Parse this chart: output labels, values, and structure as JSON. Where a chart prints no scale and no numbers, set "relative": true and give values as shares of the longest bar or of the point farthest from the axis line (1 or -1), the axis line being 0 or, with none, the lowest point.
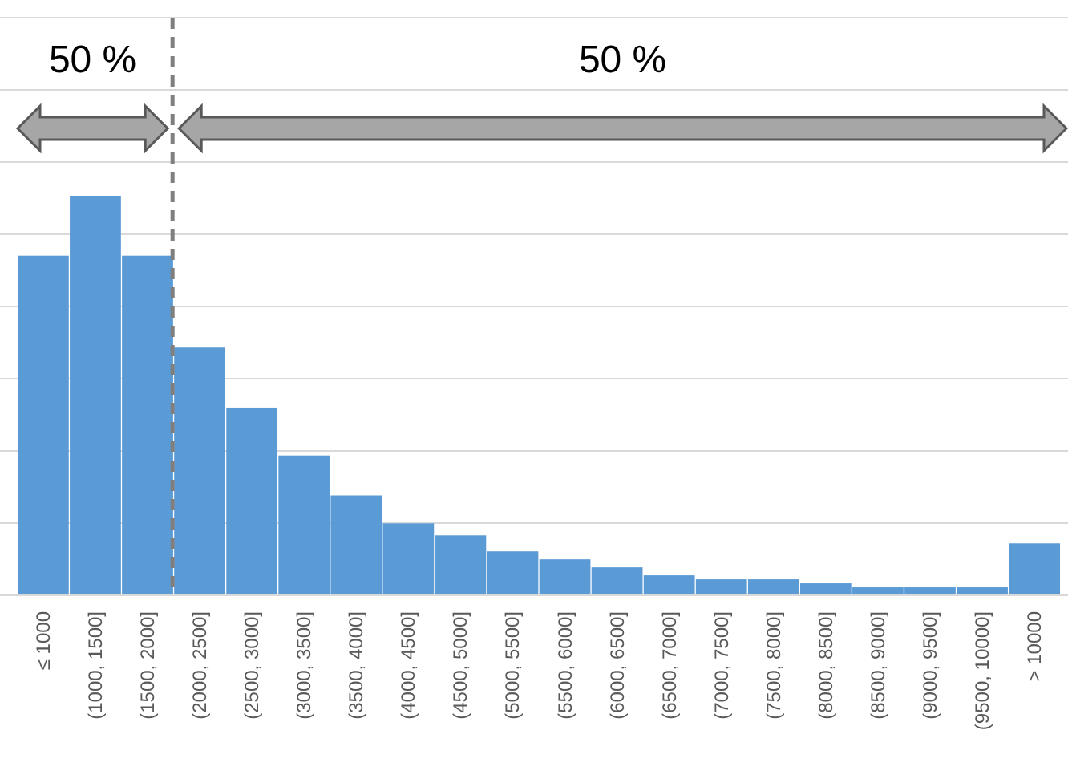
{
  "chart_data": {
    "type": "bar",
    "relative": true,
    "grid": "y",
    "color": "#5b9bd5",
    "categories": [
      "≤ 1000",
      "(1000, 1500]",
      "(1500, 2000]",
      "(2000, 2500]",
      "(2500, 3000]",
      "(3000, 3500]",
      "(3500, 4000]",
      "(4000, 4500]",
      "(4500, 5000]",
      "(5000, 5500]",
      "(5500, 6000]",
      "(6000, 6500]",
      "(6500, 7000]",
      "(7000, 7500]",
      "(7500, 8000]",
      "(8000, 8500]",
      "(8500, 9000]",
      "(9000, 9500]",
      "(9500, 10000]",
      "> 10000"
    ],
    "values": [
      0.85,
      1,
      0.85,
      0.62,
      0.47,
      0.35,
      0.25,
      0.18,
      0.15,
      0.11,
      0.09,
      0.07,
      0.05,
      0.04,
      0.04,
      0.03,
      0.02,
      0.02,
      0.02,
      0.13
    ],
    "annotations": [
      "50 %",
      "50 %"
    ]
  }
}
